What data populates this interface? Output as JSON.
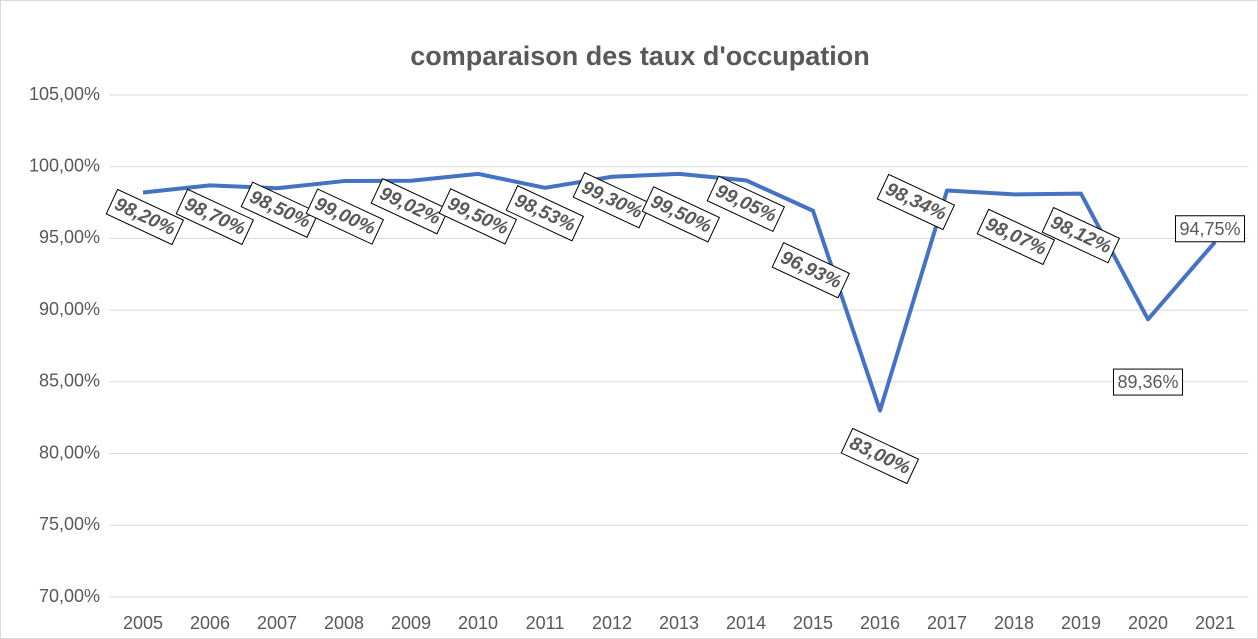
{
  "chart_data": {
    "type": "line",
    "title": "comparaison des taux d'occupation",
    "categories": [
      "2005",
      "2006",
      "2007",
      "2008",
      "2009",
      "2010",
      "2011",
      "2012",
      "2013",
      "2014",
      "2015",
      "2016",
      "2017",
      "2018",
      "2019",
      "2020",
      "2021"
    ],
    "series": [
      {
        "name": "taux d'occupation",
        "color": "#4472c4",
        "values": [
          98.2,
          98.7,
          98.5,
          99.0,
          99.02,
          99.5,
          98.53,
          99.3,
          99.5,
          99.05,
          96.93,
          83.0,
          98.34,
          98.07,
          98.12,
          89.36,
          94.75
        ],
        "value_labels": [
          "98,20%",
          "98,70%",
          "98,50%",
          "99,00%",
          "99,02%",
          "99,50%",
          "98,53%",
          "99,30%",
          "99,50%",
          "99,05%",
          "96,93%",
          "83,00%",
          "98,34%",
          "98,07%",
          "98,12%",
          "89,36%",
          "94,75%"
        ]
      }
    ],
    "ylim": [
      70,
      105
    ],
    "yticks": [
      {
        "value": 70,
        "label": "70,00%"
      },
      {
        "value": 75,
        "label": "75,00%"
      },
      {
        "value": 80,
        "label": "80,00%"
      },
      {
        "value": 85,
        "label": "85,00%"
      },
      {
        "value": 90,
        "label": "90,00%"
      },
      {
        "value": 95,
        "label": "95,00%"
      },
      {
        "value": 100,
        "label": "100,00%"
      },
      {
        "value": 105,
        "label": "105,00%"
      }
    ],
    "grid": true
  }
}
